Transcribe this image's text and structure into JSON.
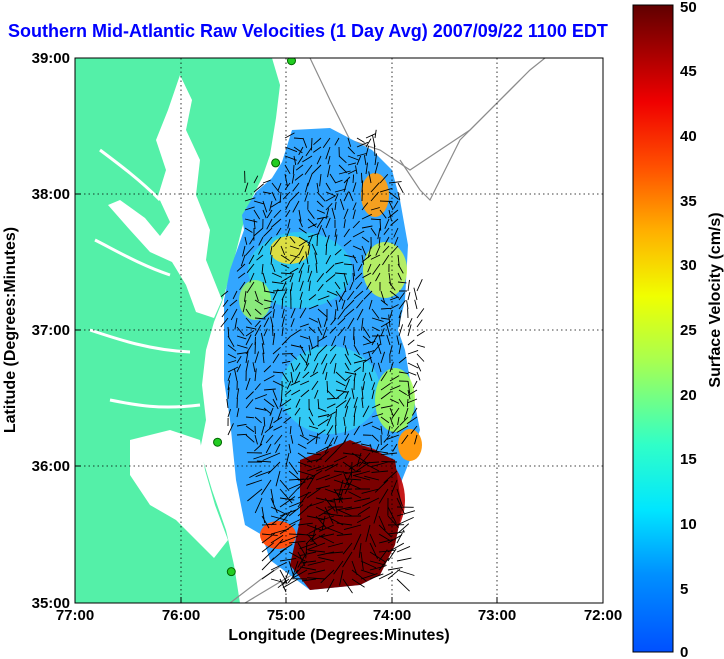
{
  "title": "Southern Mid-Atlantic Raw Velocities (1 Day Avg) 2007/09/22 1100 EDT",
  "map": {
    "x_label": "Longitude (Degrees:Minutes)",
    "y_label": "Latitude (Degrees:Minutes)",
    "lon_ticks": [
      "77:00",
      "76:00",
      "75:00",
      "74:00",
      "73:00",
      "72:00"
    ],
    "lat_ticks": [
      "39:00",
      "38:00",
      "37:00",
      "36:00",
      "35:00"
    ],
    "land_color": "#54f0a8",
    "water_color": "#ffffff",
    "gridlines": "dotted"
  },
  "colorbar": {
    "label": "Surface Velocity (cm/s)",
    "ticks": [
      "50",
      "45",
      "40",
      "35",
      "30",
      "25",
      "20",
      "15",
      "10",
      "5",
      "0"
    ],
    "min": 0,
    "max": 50,
    "colormap": "jet"
  },
  "stations": [
    {
      "lon": -74.95,
      "lat": 38.98
    },
    {
      "lon": -75.1,
      "lat": 38.23
    },
    {
      "lon": -75.65,
      "lat": 36.18
    },
    {
      "lon": -75.52,
      "lat": 35.23
    }
  ]
}
